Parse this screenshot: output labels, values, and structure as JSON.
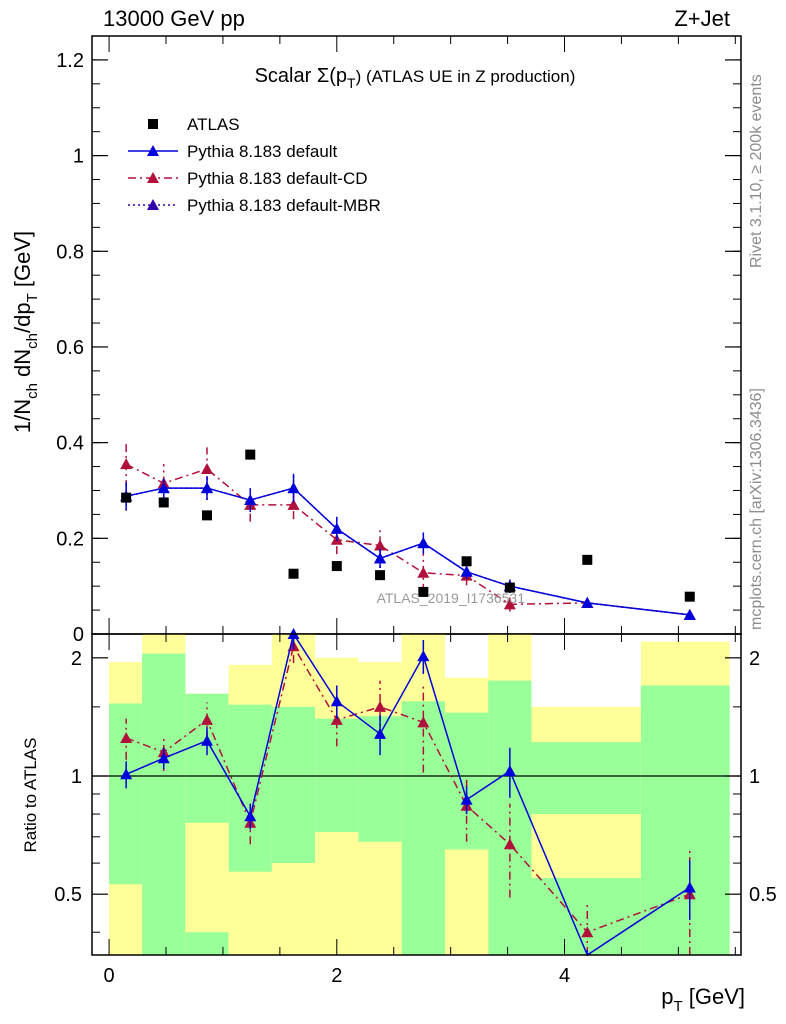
{
  "header": {
    "energy_label": "13000 GeV pp",
    "process_label": "Z+Jet"
  },
  "side_labels": {
    "rivet": "Rivet 3.1.10, ≥ 200k events",
    "mcplots": "mcplots.cern.ch [arXiv:1306.3436]"
  },
  "colors": {
    "atlas": "#000000",
    "default": "#0000dd",
    "cd": "#b0103a",
    "mbr": "#3300aa",
    "band_inner": "#99ff99",
    "band_outer": "#ffff99"
  },
  "chart_data": [
    {
      "type": "scatter",
      "title_main": "Scalar Σ(p",
      "title_sub": "T",
      "title_tail": ") (ATLAS UE in Z production)",
      "ylabel": "1/N_ch dN_ch/dp_T [GeV]",
      "ylabel_parts": [
        "1/N",
        "ch",
        " dN",
        "ch",
        "/dp",
        "T",
        " [GeV]"
      ],
      "xlabel": "",
      "xlim": [
        -0.15,
        5.55
      ],
      "ylim": [
        0,
        1.25
      ],
      "yticks": [
        "0",
        "0.2",
        "0.4",
        "0.6",
        "0.8",
        "1",
        "1.2"
      ],
      "ytick_values": [
        0,
        0.2,
        0.4,
        0.6,
        0.8,
        1.0,
        1.2
      ],
      "watermark": "ATLAS_2019_I1736531",
      "legend_position": "top-left",
      "x": [
        0.15,
        0.48,
        0.86,
        1.24,
        1.62,
        2.0,
        2.38,
        2.76,
        3.14,
        3.52,
        4.2,
        5.1
      ],
      "series": [
        {
          "name": "ATLAS",
          "marker": "square",
          "values": [
            0.285,
            0.275,
            0.248,
            0.375,
            0.126,
            0.142,
            0.123,
            0.088,
            0.152,
            0.097,
            0.155,
            0.078
          ]
        },
        {
          "name": "Pythia 8.183 default",
          "marker": "triangle",
          "line": "solid",
          "values": [
            0.288,
            0.305,
            0.305,
            0.28,
            0.305,
            0.22,
            0.158,
            0.19,
            0.13,
            0.1,
            0.065,
            0.04
          ],
          "errors": [
            0.03,
            0.02,
            0.025,
            0.025,
            0.03,
            0.025,
            0.02,
            0.022,
            0.015,
            0.014,
            0.008,
            0.006
          ]
        },
        {
          "name": "Pythia 8.183 default-CD",
          "marker": "triangle",
          "line": "dashdot",
          "values": [
            0.355,
            0.315,
            0.345,
            0.27,
            0.27,
            0.197,
            0.185,
            0.128,
            0.122,
            0.062,
            0.065,
            0.04
          ],
          "errors": [
            0.05,
            0.04,
            0.045,
            0.035,
            0.03,
            0.03,
            0.035,
            0.04,
            0.02,
            0.015,
            0.01,
            0.006
          ]
        },
        {
          "name": "Pythia 8.183 default-MBR",
          "marker": "triangle",
          "line": "dotted",
          "values": [
            0.288,
            0.305,
            0.305,
            0.28,
            0.305,
            0.22,
            0.158,
            0.19,
            0.13,
            0.1,
            0.065,
            0.04
          ],
          "errors": [
            0.03,
            0.02,
            0.025,
            0.025,
            0.03,
            0.025,
            0.02,
            0.022,
            0.015,
            0.014,
            0.008,
            0.006
          ]
        }
      ]
    },
    {
      "type": "line",
      "ylabel": "Ratio to ATLAS",
      "xlabel_main": "p",
      "xlabel_sub": "T",
      "xlabel_tail": " [GeV]",
      "xlim": [
        -0.15,
        5.55
      ],
      "ylim": [
        0.35,
        2.3
      ],
      "yscale": "log",
      "yticks": [
        "0.5",
        "1",
        "2"
      ],
      "ytick_values": [
        0.5,
        1,
        2
      ],
      "xticks": [
        "0",
        "2",
        "4"
      ],
      "xtick_values": [
        0,
        2,
        4
      ],
      "reference": 1,
      "bands": [
        {
          "x0": 0.0,
          "x1": 0.29,
          "inner": [
            0.5,
            1.53
          ],
          "outer": [
            0.35,
            1.95
          ]
        },
        {
          "x0": 0.29,
          "x1": 0.67,
          "inner": [
            0.35,
            2.05
          ],
          "outer": [
            0.35,
            2.3
          ]
        },
        {
          "x0": 0.67,
          "x1": 1.05,
          "inner": [
            0.35,
            1.62
          ],
          "outer": [
            0.35,
            1.62
          ]
        },
        {
          "x0": 1.05,
          "x1": 1.43,
          "inner": [
            0.57,
            1.52
          ],
          "outer": [
            0.35,
            1.92
          ]
        },
        {
          "x0": 1.43,
          "x1": 1.81,
          "inner": [
            0.6,
            1.5
          ],
          "outer": [
            0.35,
            2.3
          ]
        },
        {
          "x0": 1.81,
          "x1": 2.19,
          "inner": [
            0.72,
            1.4
          ],
          "outer": [
            0.35,
            2.0
          ]
        },
        {
          "x0": 2.19,
          "x1": 2.57,
          "inner": [
            0.35,
            1.42
          ],
          "outer": [
            0.35,
            1.95
          ]
        },
        {
          "x0": 2.57,
          "x1": 2.95,
          "inner": [
            0.35,
            1.55
          ],
          "outer": [
            0.35,
            2.3
          ]
        },
        {
          "x0": 2.95,
          "x1": 3.33,
          "inner": [
            0.35,
            1.45
          ],
          "outer": [
            0.35,
            1.78
          ]
        },
        {
          "x0": 3.33,
          "x1": 3.71,
          "inner": [
            0.35,
            1.75
          ],
          "outer": [
            0.35,
            2.3
          ]
        },
        {
          "x0": 3.71,
          "x1": 4.67,
          "inner": [
            0.35,
            1.22
          ],
          "outer": [
            0.35,
            1.5
          ]
        },
        {
          "x0": 4.67,
          "x1": 5.45,
          "inner": [
            0.35,
            1.7
          ],
          "outer": [
            0.35,
            2.2
          ]
        }
      ],
      "white_gaps": [
        {
          "x0": 0.0,
          "x1": 0.29,
          "lo": 0.35,
          "hi": 0.53
        },
        {
          "x0": 0.67,
          "x1": 1.05,
          "lo": 0.4,
          "hi": 0.76
        },
        {
          "x0": 1.05,
          "x1": 1.43,
          "lo": 0.35,
          "hi": 0.57
        },
        {
          "x0": 1.43,
          "x1": 1.81,
          "lo": 0.35,
          "hi": 0.6
        },
        {
          "x0": 1.81,
          "x1": 2.19,
          "lo": 0.35,
          "hi": 0.72
        },
        {
          "x0": 2.19,
          "x1": 2.57,
          "lo": 0.35,
          "hi": 0.68
        },
        {
          "x0": 2.95,
          "x1": 3.33,
          "lo": 0.35,
          "hi": 0.65
        },
        {
          "x0": 3.71,
          "x1": 4.67,
          "lo": 0.55,
          "hi": 0.8
        }
      ],
      "x": [
        0.15,
        0.48,
        0.86,
        1.24,
        1.62,
        2.0,
        2.38,
        2.76,
        3.14,
        3.52,
        4.2,
        5.1
      ],
      "series": [
        {
          "name": "Pythia 8.183 default",
          "line": "solid",
          "values": [
            1.01,
            1.11,
            1.23,
            0.79,
            2.3,
            1.55,
            1.28,
            2.02,
            0.87,
            1.03,
            0.33,
            0.52
          ],
          "errors": [
            0.08,
            0.07,
            0.1,
            0.06,
            0.2,
            0.15,
            0.15,
            0.2,
            0.07,
            0.15,
            0.03,
            0.09
          ]
        },
        {
          "name": "Pythia 8.183 default-CD",
          "line": "dashdot",
          "values": [
            1.25,
            1.15,
            1.39,
            0.76,
            2.14,
            1.39,
            1.5,
            1.37,
            0.84,
            0.67,
            0.4,
            0.5
          ],
          "errors": [
            0.15,
            0.12,
            0.15,
            0.09,
            0.2,
            0.2,
            0.25,
            0.35,
            0.16,
            0.18,
            0.07,
            0.15
          ]
        }
      ]
    }
  ]
}
